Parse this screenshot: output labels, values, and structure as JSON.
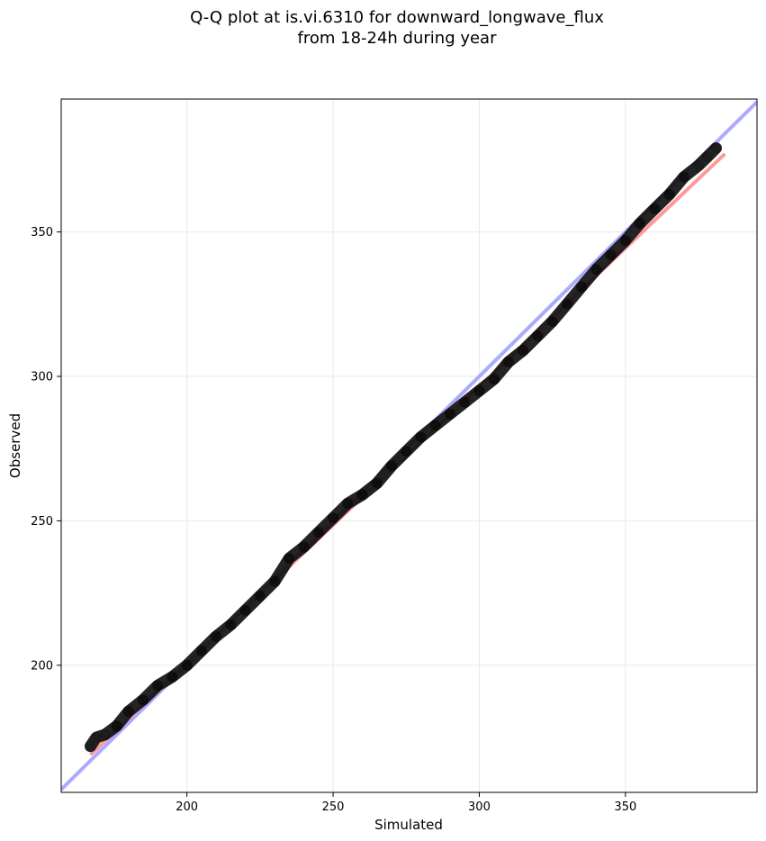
{
  "chart_data": {
    "type": "scatter",
    "title_line1": "Q-Q plot at is.vi.6310 for downward_longwave_flux",
    "title_line2": "from 18-24h during year",
    "xlabel": "Simulated",
    "ylabel": "Observed",
    "xlim": [
      157,
      395
    ],
    "ylim": [
      156,
      396
    ],
    "xticks": [
      200,
      250,
      300,
      350
    ],
    "yticks": [
      200,
      250,
      300,
      350
    ],
    "grid": true,
    "colors": {
      "points": "#000000",
      "identity_line": "#aaaaff",
      "fit_line": "#ff9999",
      "grid": "#e8e8e8"
    },
    "quantiles": [
      [
        167,
        172
      ],
      [
        169,
        175
      ],
      [
        172,
        176
      ],
      [
        176,
        179
      ],
      [
        180,
        184
      ],
      [
        185,
        188
      ],
      [
        190,
        193
      ],
      [
        195,
        196
      ],
      [
        200,
        200
      ],
      [
        205,
        205
      ],
      [
        210,
        210
      ],
      [
        215,
        214
      ],
      [
        220,
        219
      ],
      [
        225,
        224
      ],
      [
        230,
        229
      ],
      [
        235,
        237
      ],
      [
        240,
        241
      ],
      [
        245,
        246
      ],
      [
        250,
        251
      ],
      [
        255,
        256
      ],
      [
        260,
        259
      ],
      [
        265,
        263
      ],
      [
        270,
        269
      ],
      [
        275,
        274
      ],
      [
        280,
        279
      ],
      [
        285,
        283
      ],
      [
        290,
        287
      ],
      [
        295,
        291
      ],
      [
        300,
        295
      ],
      [
        305,
        299
      ],
      [
        310,
        305
      ],
      [
        315,
        309
      ],
      [
        320,
        314
      ],
      [
        325,
        319
      ],
      [
        330,
        325
      ],
      [
        335,
        331
      ],
      [
        340,
        337
      ],
      [
        345,
        342
      ],
      [
        350,
        347
      ],
      [
        355,
        353
      ],
      [
        360,
        358
      ],
      [
        365,
        363
      ],
      [
        370,
        369
      ],
      [
        375,
        373
      ],
      [
        378,
        376
      ],
      [
        381,
        379
      ]
    ],
    "identity_line": [
      [
        157,
        157
      ],
      [
        395,
        395
      ]
    ],
    "fit_line": [
      [
        167,
        169
      ],
      [
        384,
        377
      ]
    ]
  }
}
